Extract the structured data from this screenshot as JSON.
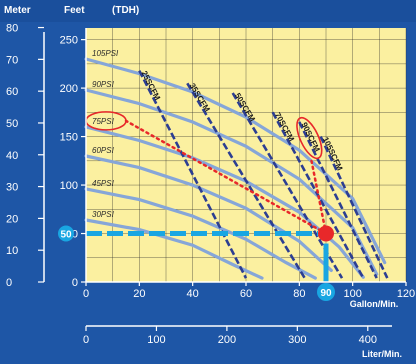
{
  "chart_data": {
    "type": "line",
    "top_labels": {
      "meter": "Meter",
      "feet": "Feet",
      "tdh": "(TDH)"
    },
    "x_unit_label": "Gallon/Min.",
    "x2_unit_label": "Liter/Min.",
    "x_ticks": [
      "0",
      "20",
      "40",
      "60",
      "80",
      "100",
      "120"
    ],
    "x2_ticks": [
      "0",
      "100",
      "200",
      "300",
      "400"
    ],
    "y_feet_ticks": [
      "0",
      "50",
      "100",
      "150",
      "200",
      "250"
    ],
    "y_meter_ticks": [
      "0",
      "10",
      "20",
      "30",
      "40",
      "50",
      "60",
      "70",
      "80"
    ],
    "xlim": [
      0,
      120
    ],
    "ylim_feet": [
      0,
      262
    ],
    "pressure_curves": [
      {
        "name": "105PSI",
        "points": [
          [
            0,
            230
          ],
          [
            20,
            215
          ],
          [
            40,
            196
          ],
          [
            60,
            170
          ],
          [
            80,
            136
          ],
          [
            100,
            86
          ],
          [
            112,
            20
          ]
        ]
      },
      {
        "name": "90PSI",
        "points": [
          [
            0,
            198
          ],
          [
            20,
            184
          ],
          [
            40,
            165
          ],
          [
            60,
            140
          ],
          [
            80,
            106
          ],
          [
            100,
            56
          ],
          [
            109,
            8
          ]
        ]
      },
      {
        "name": "75PSI",
        "points": [
          [
            0,
            160
          ],
          [
            20,
            146
          ],
          [
            40,
            128
          ],
          [
            60,
            104
          ],
          [
            80,
            72
          ],
          [
            95,
            36
          ],
          [
            104,
            5
          ]
        ]
      },
      {
        "name": "60PSI",
        "points": [
          [
            0,
            130
          ],
          [
            20,
            118
          ],
          [
            40,
            100
          ],
          [
            60,
            76
          ],
          [
            80,
            42
          ],
          [
            92,
            12
          ]
        ]
      },
      {
        "name": "45PSI",
        "points": [
          [
            0,
            96
          ],
          [
            20,
            85
          ],
          [
            40,
            68
          ],
          [
            60,
            44
          ],
          [
            75,
            20
          ],
          [
            86,
            4
          ]
        ]
      },
      {
        "name": "30PSI",
        "points": [
          [
            0,
            64
          ],
          [
            20,
            54
          ],
          [
            40,
            38
          ],
          [
            55,
            18
          ],
          [
            66,
            4
          ]
        ]
      }
    ],
    "air_curves": [
      {
        "name": "25SCFM",
        "points": [
          [
            20,
            218
          ],
          [
            60,
            4
          ]
        ]
      },
      {
        "name": "35SCFM",
        "points": [
          [
            38,
            205
          ],
          [
            82,
            4
          ]
        ]
      },
      {
        "name": "50SCFM",
        "points": [
          [
            55,
            195
          ],
          [
            96,
            4
          ]
        ]
      },
      {
        "name": "70SCFM",
        "points": [
          [
            70,
            175
          ],
          [
            104,
            4
          ]
        ]
      },
      {
        "name": "90SCFM",
        "points": [
          [
            80,
            165
          ],
          [
            109,
            4
          ]
        ]
      },
      {
        "name": "105SCFM",
        "points": [
          [
            88,
            150
          ],
          [
            113,
            4
          ]
        ]
      }
    ],
    "operating_point": {
      "x": 90,
      "y": 50
    },
    "x_marker": "90",
    "y_marker": "50",
    "colors": {
      "background": "#1e56a6",
      "plot": "#fbf0a0",
      "grid": "#2a2a2a",
      "pressure_curve": "#86a6d8",
      "air_curve": "#2c3e92",
      "marker": "#e8282a",
      "highlight": "#19a6e2"
    }
  }
}
